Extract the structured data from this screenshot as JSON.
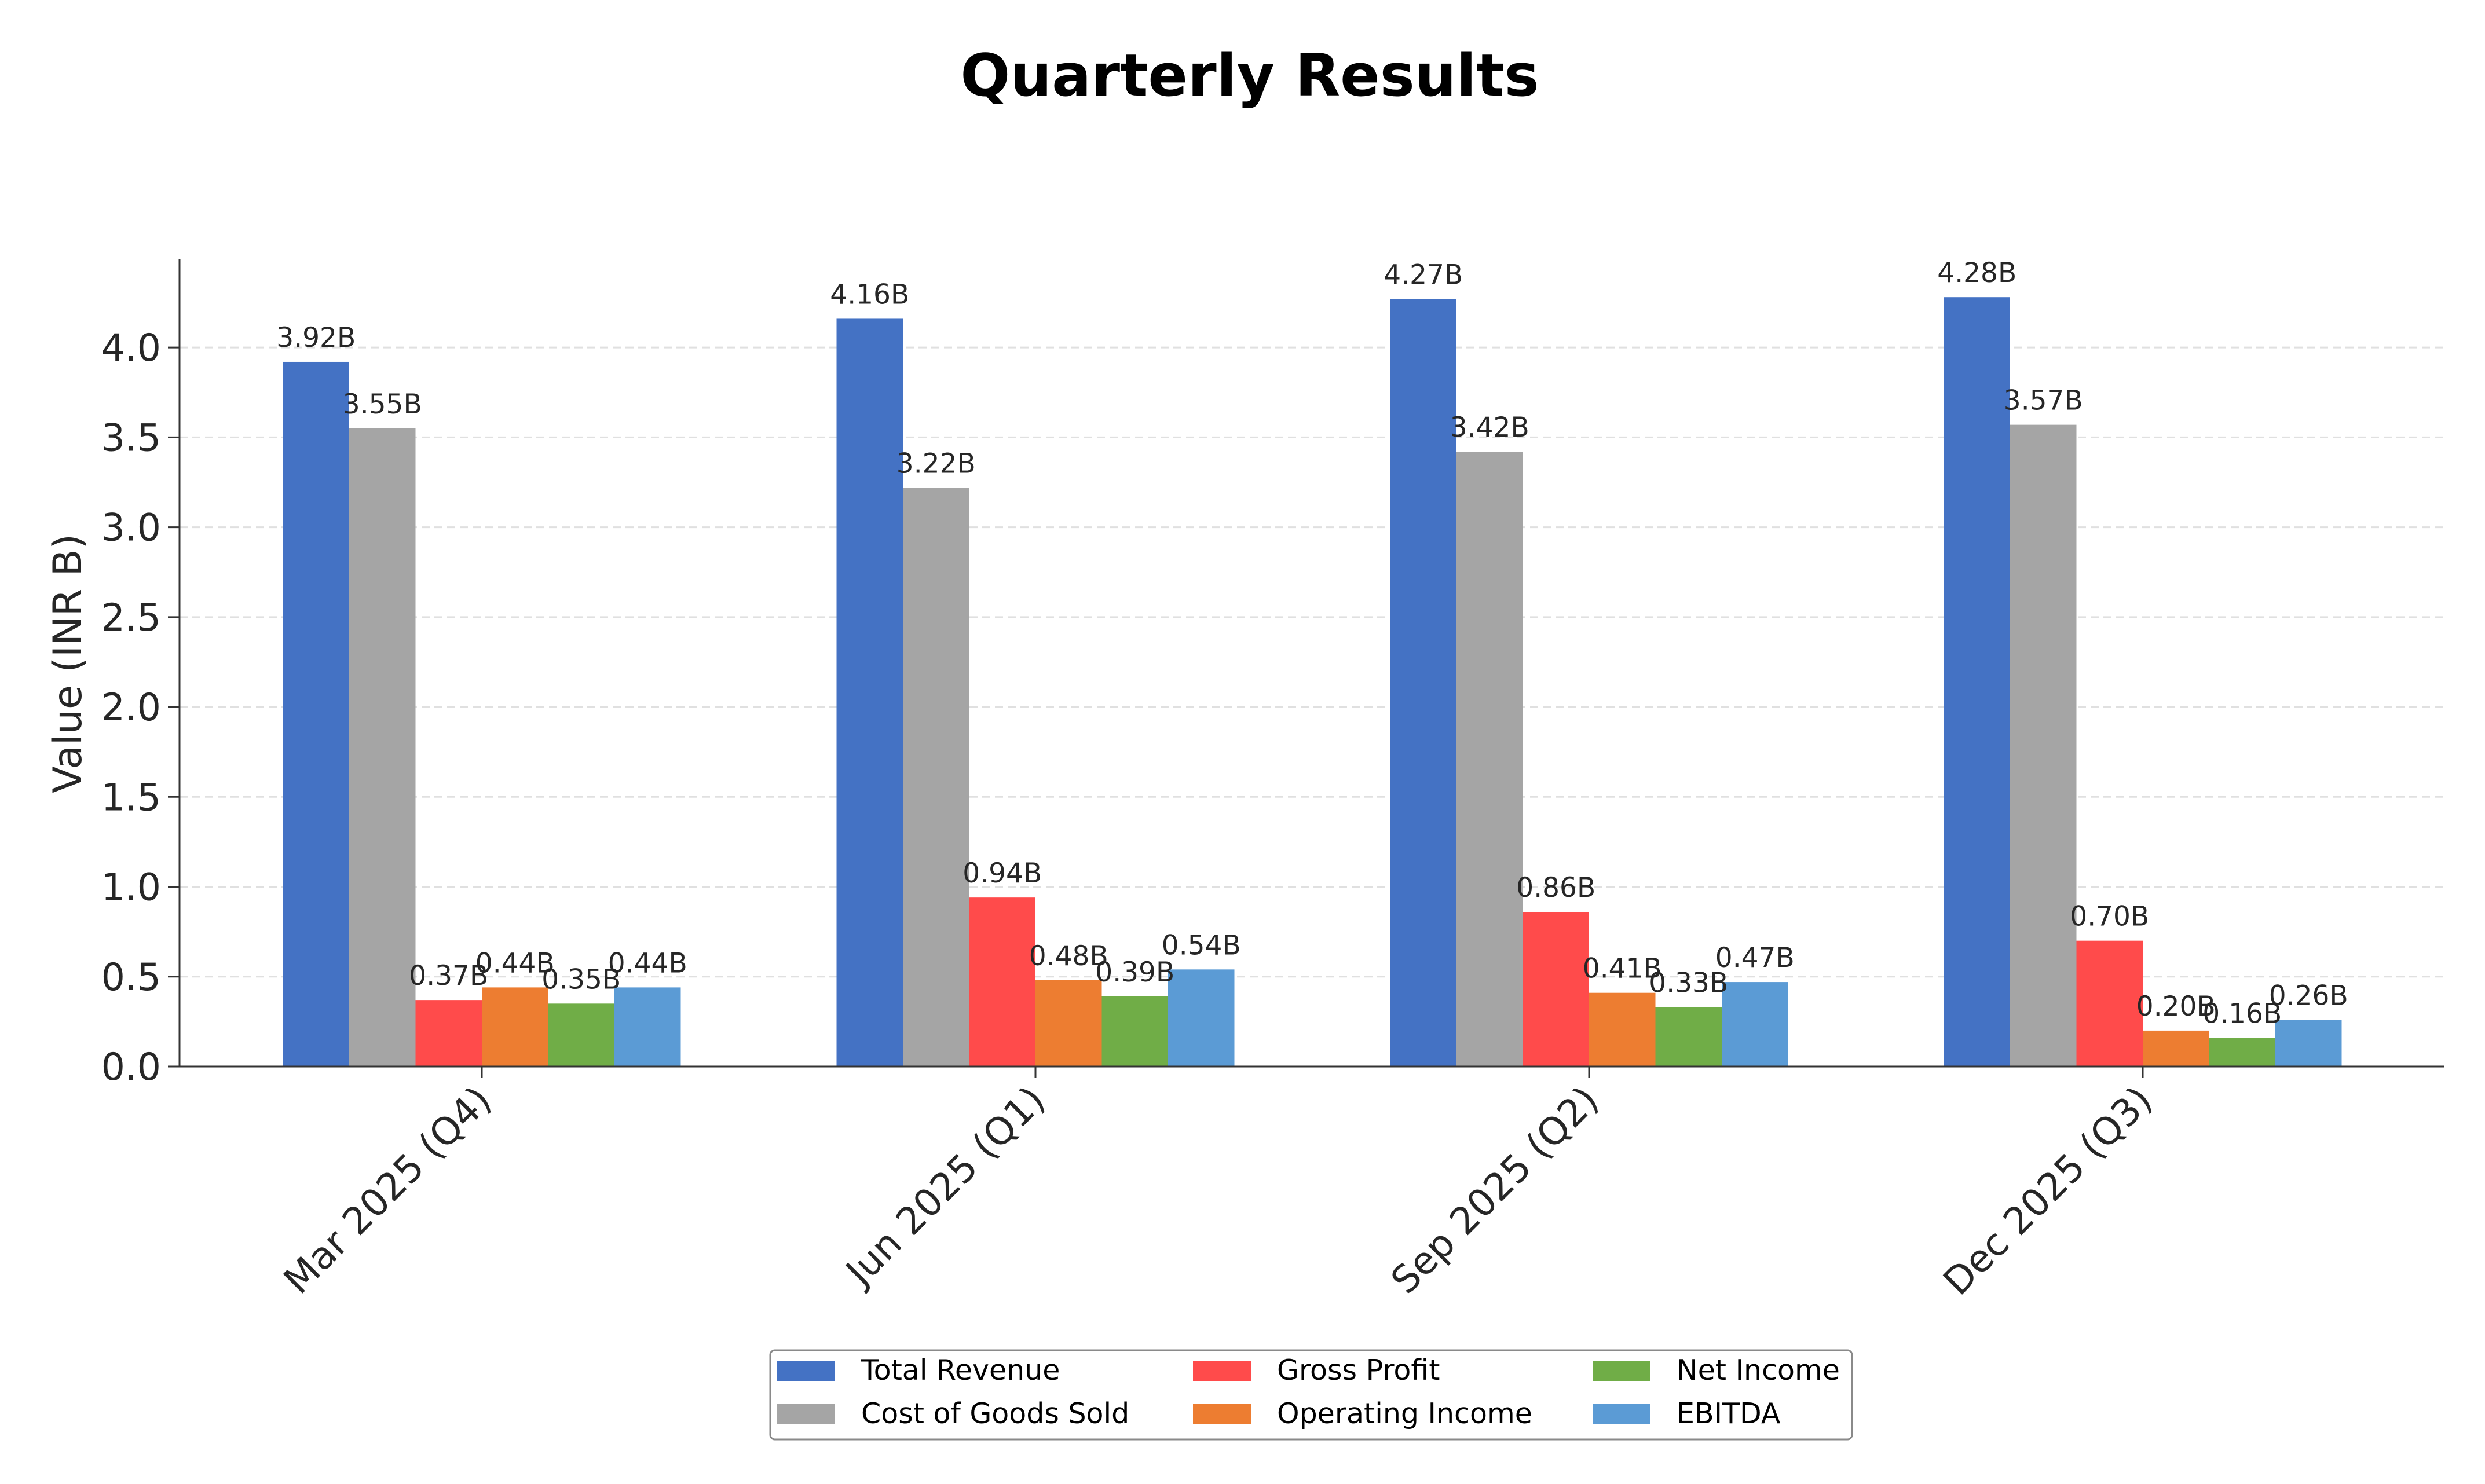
{
  "chart_data": {
    "type": "bar",
    "title": "Quarterly Results",
    "xlabel": "",
    "ylabel": "Value (INR B)",
    "ylim": [
      0,
      4.49
    ],
    "yticks": [
      0.0,
      0.5,
      1.0,
      1.5,
      2.0,
      2.5,
      3.0,
      3.5,
      4.0
    ],
    "ytick_labels": [
      "0.0",
      "0.5",
      "1.0",
      "1.5",
      "2.0",
      "2.5",
      "3.0",
      "3.5",
      "4.0"
    ],
    "grid": true,
    "legend_position": "bottom-center",
    "categories": [
      "Mar 2025 (Q4)",
      "Jun 2025 (Q1)",
      "Sep 2025 (Q2)",
      "Dec 2025 (Q3)"
    ],
    "series": [
      {
        "name": "Total Revenue",
        "color": "#4472C4",
        "values": [
          3.92,
          4.16,
          4.27,
          4.28
        ],
        "labels": [
          "3.92B",
          "4.16B",
          "4.27B",
          "4.28B"
        ]
      },
      {
        "name": "Cost of Goods Sold",
        "color": "#A5A5A5",
        "values": [
          3.55,
          3.22,
          3.42,
          3.57
        ],
        "labels": [
          "3.55B",
          "3.22B",
          "3.42B",
          "3.57B"
        ]
      },
      {
        "name": "Gross Profit",
        "color": "#FF4B4B",
        "values": [
          0.37,
          0.94,
          0.86,
          0.7
        ],
        "labels": [
          "0.37B",
          "0.94B",
          "0.86B",
          "0.70B"
        ]
      },
      {
        "name": "Operating Income",
        "color": "#ED7D31",
        "values": [
          0.44,
          0.48,
          0.41,
          0.2
        ],
        "labels": [
          "0.44B",
          "0.48B",
          "0.41B",
          "0.20B"
        ]
      },
      {
        "name": "Net Income",
        "color": "#70AD47",
        "values": [
          0.35,
          0.39,
          0.33,
          0.16
        ],
        "labels": [
          "0.35B",
          "0.39B",
          "0.33B",
          "0.16B"
        ]
      },
      {
        "name": "EBITDA",
        "color": "#5B9BD5",
        "values": [
          0.44,
          0.54,
          0.47,
          0.26
        ],
        "labels": [
          "0.44B",
          "0.54B",
          "0.47B",
          "0.26B"
        ]
      }
    ]
  }
}
